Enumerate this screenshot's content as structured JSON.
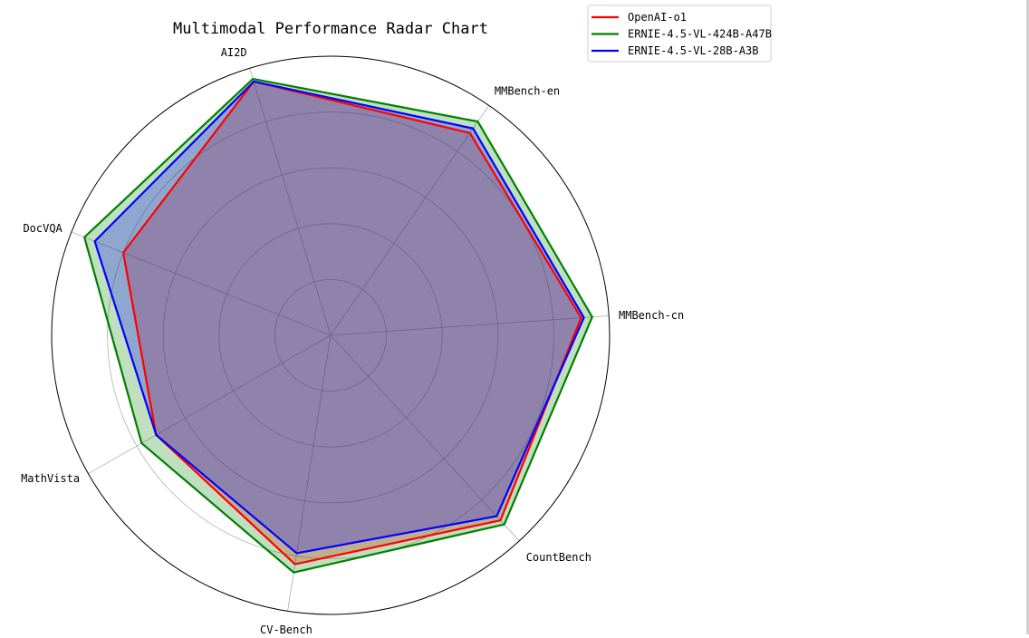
{
  "chart_data": {
    "type": "radar",
    "title": "Multimodal Performance Radar Chart",
    "axes": [
      "MMBench-cn",
      "MMBench-en",
      "AI2D",
      "DocVQA",
      "MathVista",
      "CV-Bench",
      "CountBench"
    ],
    "rlim": [
      0,
      100
    ],
    "grid": true,
    "legend_position": "top-right",
    "series": [
      {
        "name": "OpenAI-o1",
        "color": "#ff0000",
        "fill": "#ff0000",
        "values": [
          90,
          88,
          95,
          80,
          72,
          83,
          90
        ]
      },
      {
        "name": "ERNIE-4.5-VL-424B-A47B",
        "color": "#008000",
        "fill": "#008000",
        "values": [
          94,
          93,
          96,
          95,
          78,
          86,
          92
        ]
      },
      {
        "name": "ERNIE-4.5-VL-28B-A3B",
        "color": "#0000ff",
        "fill": "#0000ff",
        "values": [
          91,
          90,
          95,
          91,
          72,
          79,
          88
        ]
      }
    ]
  }
}
